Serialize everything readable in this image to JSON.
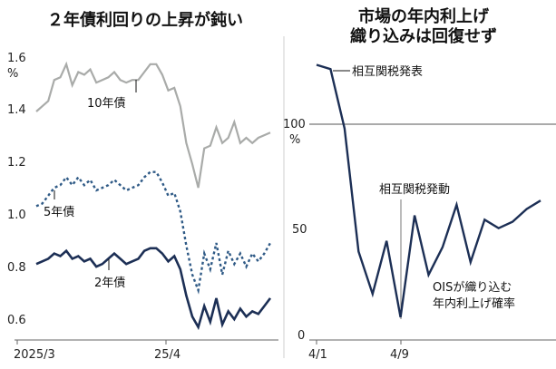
{
  "left_title": "２年債利回りの上昇が鈍い",
  "right_title_line1": "市場の年内利上げ",
  "right_title_line2": "織り込みは回復せず",
  "colors": {
    "gray": "#a9aba9",
    "dotted": "#2f5a86",
    "navy": "#1c2f55",
    "axis": "#666666",
    "text": "#1a1a1a"
  },
  "chart_data": [
    {
      "type": "line",
      "title": "２年債利回りの上昇が鈍い",
      "y_unit": "%",
      "ylim": [
        0.55,
        1.7
      ],
      "yticks": [
        "1.6",
        "1.4",
        "1.2",
        "1.0",
        "0.8",
        "0.6"
      ],
      "xtick_labels": [
        "2025/3",
        "25/4"
      ],
      "grid": false,
      "series": [
        {
          "name": "10年債",
          "style": "solid-gray",
          "values": [
            1.4,
            1.42,
            1.44,
            1.52,
            1.53,
            1.58,
            1.5,
            1.55,
            1.54,
            1.56,
            1.51,
            1.52,
            1.53,
            1.55,
            1.52,
            1.51,
            1.52,
            1.52,
            1.55,
            1.58,
            1.58,
            1.54,
            1.48,
            1.49,
            1.42,
            1.28,
            1.2,
            1.11,
            1.26,
            1.27,
            1.34,
            1.28,
            1.3,
            1.36,
            1.28,
            1.3,
            1.28,
            1.3,
            1.31,
            1.32
          ]
        },
        {
          "name": "5年債",
          "style": "dotted-blue",
          "values": [
            1.04,
            1.05,
            1.08,
            1.11,
            1.12,
            1.15,
            1.12,
            1.15,
            1.12,
            1.14,
            1.1,
            1.11,
            1.12,
            1.14,
            1.12,
            1.1,
            1.11,
            1.12,
            1.15,
            1.17,
            1.17,
            1.13,
            1.08,
            1.09,
            1.02,
            0.89,
            0.78,
            0.72,
            0.86,
            0.8,
            0.9,
            0.78,
            0.87,
            0.82,
            0.86,
            0.81,
            0.86,
            0.83,
            0.86,
            0.9
          ]
        },
        {
          "name": "2年債",
          "style": "solid-navy",
          "values": [
            0.82,
            0.83,
            0.84,
            0.86,
            0.85,
            0.87,
            0.84,
            0.85,
            0.83,
            0.84,
            0.81,
            0.82,
            0.84,
            0.86,
            0.84,
            0.82,
            0.83,
            0.84,
            0.87,
            0.88,
            0.88,
            0.86,
            0.83,
            0.85,
            0.8,
            0.7,
            0.62,
            0.58,
            0.66,
            0.6,
            0.69,
            0.59,
            0.64,
            0.61,
            0.65,
            0.62,
            0.64,
            0.63,
            0.66,
            0.69
          ]
        }
      ]
    },
    {
      "type": "line",
      "title": "市場の年内利上げ織り込みは回復せず",
      "y_unit": "%",
      "ylim": [
        0,
        140
      ],
      "yticks": [
        "100",
        "50",
        "0"
      ],
      "xtick_labels": [
        "4/1",
        "4/9"
      ],
      "grid": false,
      "reference_line": 100,
      "series": [
        {
          "name": "OISが織り込む年内利上げ確率",
          "values": [
            128,
            126,
            98,
            40,
            20,
            45,
            9,
            57,
            29,
            42,
            62,
            35,
            55,
            51,
            54,
            60,
            64
          ]
        }
      ],
      "annotations": [
        {
          "text": "相互関税発表",
          "at_index": 1
        },
        {
          "text": "相互関税発動",
          "at_index": 6
        }
      ]
    }
  ],
  "labels": {
    "y10": "10年債",
    "y5": "5年債",
    "y2": "2年債",
    "ois_line1": "OISが織り込む",
    "ois_line2": "年内利上げ確率",
    "event1": "相互関税発表",
    "event2": "相互関税発動"
  }
}
